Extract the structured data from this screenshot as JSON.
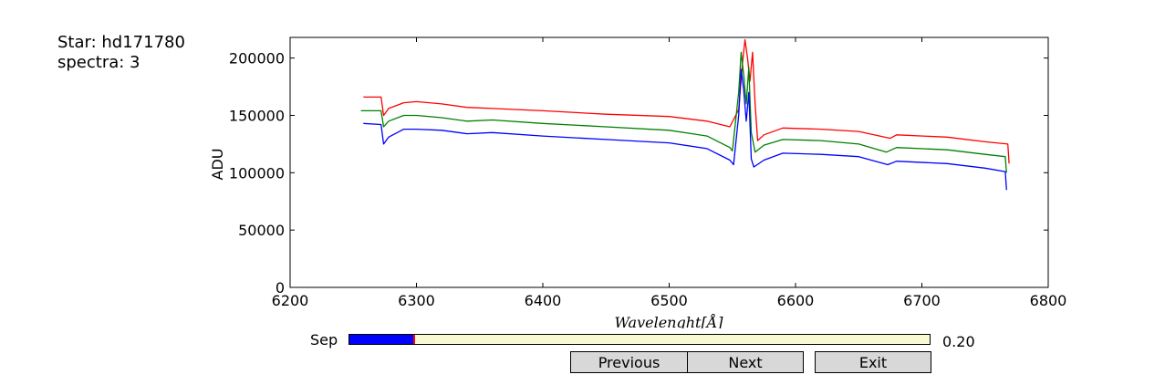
{
  "info": {
    "star_line": "Star: hd171780",
    "spectra_line": "spectra: 3"
  },
  "slider": {
    "label": "Sep",
    "value_text": "0.20",
    "fraction": 0.112,
    "fill_color": "#0000ff",
    "handle_color": "#ff0000",
    "track_color": "#fafad2"
  },
  "buttons": {
    "previous": "Previous",
    "next": "Next",
    "exit": "Exit"
  },
  "chart_data": {
    "type": "line",
    "xlabel": "Wavelenght[Å]",
    "ylabel": "ADU",
    "xlim": [
      6200,
      6800
    ],
    "ylim": [
      0,
      218000
    ],
    "xticks": [
      6200,
      6300,
      6400,
      6500,
      6600,
      6700,
      6800
    ],
    "yticks": [
      0,
      50000,
      100000,
      150000,
      200000
    ],
    "grid": false,
    "series": [
      {
        "color": "#ff0000",
        "points": [
          [
            6258,
            166000
          ],
          [
            6272,
            166000
          ],
          [
            6274,
            150000
          ],
          [
            6278,
            156000
          ],
          [
            6290,
            161000
          ],
          [
            6300,
            162000
          ],
          [
            6320,
            160000
          ],
          [
            6340,
            157000
          ],
          [
            6360,
            156000
          ],
          [
            6400,
            154000
          ],
          [
            6450,
            151000
          ],
          [
            6500,
            149000
          ],
          [
            6530,
            145000
          ],
          [
            6548,
            140000
          ],
          [
            6555,
            155000
          ],
          [
            6558,
            195000
          ],
          [
            6560,
            216000
          ],
          [
            6562,
            200000
          ],
          [
            6564,
            180000
          ],
          [
            6566,
            205000
          ],
          [
            6568,
            160000
          ],
          [
            6570,
            128000
          ],
          [
            6575,
            133000
          ],
          [
            6590,
            139000
          ],
          [
            6620,
            138000
          ],
          [
            6650,
            136000
          ],
          [
            6675,
            130000
          ],
          [
            6680,
            133000
          ],
          [
            6720,
            131000
          ],
          [
            6750,
            127000
          ],
          [
            6768,
            125000
          ],
          [
            6769,
            108000
          ]
        ]
      },
      {
        "color": "#008000",
        "points": [
          [
            6256,
            154000
          ],
          [
            6272,
            154000
          ],
          [
            6274,
            140000
          ],
          [
            6278,
            145000
          ],
          [
            6290,
            150000
          ],
          [
            6300,
            150000
          ],
          [
            6320,
            148000
          ],
          [
            6340,
            145000
          ],
          [
            6360,
            146000
          ],
          [
            6400,
            143000
          ],
          [
            6450,
            140000
          ],
          [
            6500,
            137000
          ],
          [
            6530,
            132000
          ],
          [
            6548,
            122000
          ],
          [
            6550,
            119000
          ],
          [
            6555,
            170000
          ],
          [
            6557,
            205000
          ],
          [
            6559,
            185000
          ],
          [
            6561,
            160000
          ],
          [
            6563,
            192000
          ],
          [
            6565,
            135000
          ],
          [
            6568,
            118000
          ],
          [
            6575,
            124000
          ],
          [
            6590,
            129000
          ],
          [
            6620,
            128000
          ],
          [
            6650,
            125000
          ],
          [
            6672,
            118000
          ],
          [
            6680,
            122000
          ],
          [
            6720,
            120000
          ],
          [
            6750,
            116000
          ],
          [
            6766,
            114000
          ],
          [
            6767,
            100000
          ]
        ]
      },
      {
        "color": "#0000ff",
        "points": [
          [
            6258,
            143000
          ],
          [
            6272,
            142000
          ],
          [
            6274,
            125000
          ],
          [
            6278,
            131000
          ],
          [
            6290,
            138000
          ],
          [
            6300,
            138000
          ],
          [
            6320,
            137000
          ],
          [
            6340,
            134000
          ],
          [
            6360,
            135000
          ],
          [
            6400,
            132000
          ],
          [
            6450,
            129000
          ],
          [
            6500,
            126000
          ],
          [
            6530,
            121000
          ],
          [
            6548,
            111000
          ],
          [
            6551,
            107000
          ],
          [
            6555,
            150000
          ],
          [
            6557,
            190000
          ],
          [
            6559,
            172000
          ],
          [
            6561,
            145000
          ],
          [
            6563,
            170000
          ],
          [
            6565,
            112000
          ],
          [
            6567,
            105000
          ],
          [
            6575,
            111000
          ],
          [
            6590,
            117000
          ],
          [
            6620,
            116000
          ],
          [
            6650,
            114000
          ],
          [
            6673,
            107000
          ],
          [
            6680,
            110000
          ],
          [
            6720,
            108000
          ],
          [
            6750,
            104000
          ],
          [
            6766,
            101000
          ],
          [
            6767,
            85000
          ]
        ]
      }
    ]
  }
}
